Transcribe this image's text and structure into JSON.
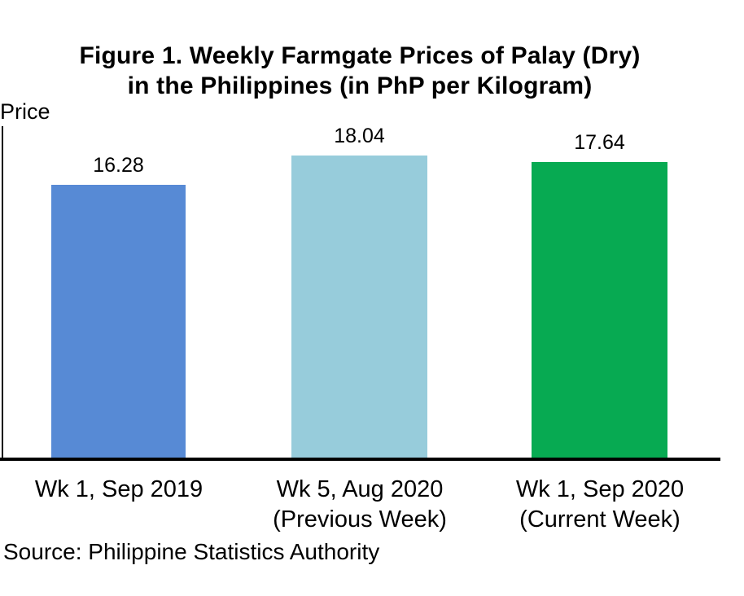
{
  "figure": {
    "title_line1": "Figure 1. Weekly Farmgate Prices of Palay (Dry)",
    "title_line2": "in the Philippines (in PhP per Kilogram)",
    "y_axis_label": "Price",
    "source_note": "Source: Philippine Statistics Authority"
  },
  "chart_data": {
    "type": "bar",
    "title": "Figure 1. Weekly Farmgate Prices of Palay (Dry) in the Philippines (in PhP per Kilogram)",
    "xlabel": "",
    "ylabel": "Price",
    "ylim": [
      0,
      20
    ],
    "grid": false,
    "legend_position": "none",
    "categories": [
      "Wk 1, Sep 2019",
      "Wk 5, Aug 2020 (Previous Week)",
      "Wk 1, Sep 2020 (Current Week)"
    ],
    "values": [
      16.28,
      18.04,
      17.64
    ],
    "bars": [
      {
        "category_line1": "Wk 1, Sep 2019",
        "category_line2": "",
        "value": 16.28,
        "value_label": "16.28",
        "color": "#578ad5"
      },
      {
        "category_line1": "Wk 5, Aug 2020",
        "category_line2": "(Previous Week)",
        "value": 18.04,
        "value_label": "18.04",
        "color": "#97ccdb"
      },
      {
        "category_line1": "Wk 1, Sep 2020",
        "category_line2": "(Current Week)",
        "value": 17.64,
        "value_label": "17.64",
        "color": "#07aa52"
      }
    ],
    "source": "Source: Philippine Statistics Authority",
    "axis_color": "#000000",
    "baseline": 0
  }
}
